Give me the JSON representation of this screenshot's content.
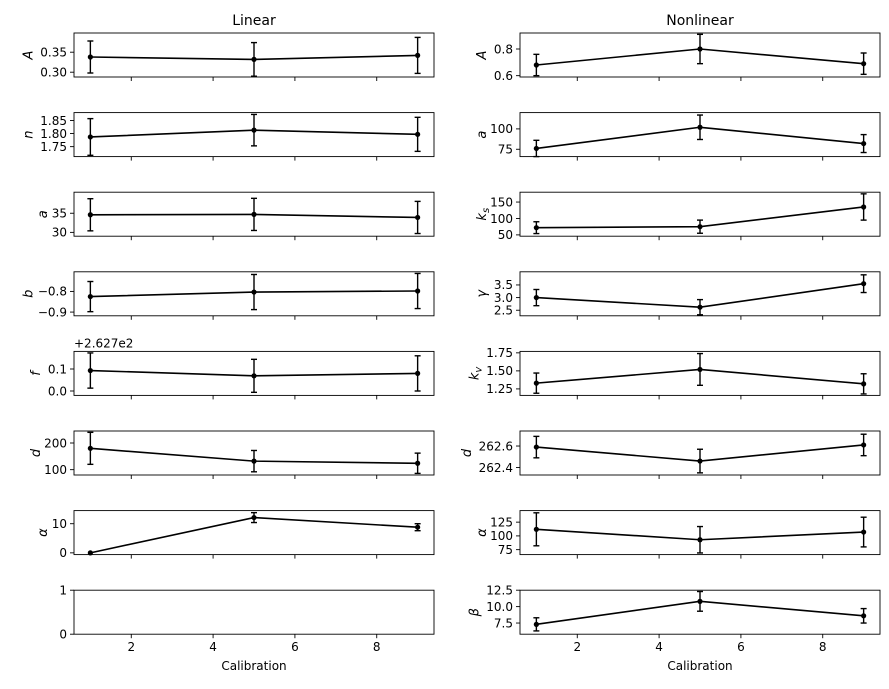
{
  "chart_data": [
    {
      "type": "line",
      "column": "Linear",
      "title": "Linear",
      "ylabel": "A",
      "ylabel_style": "italic",
      "x": [
        1,
        5,
        9
      ],
      "values": [
        0.338,
        0.332,
        0.342
      ],
      "err": [
        0.04,
        0.042,
        0.045
      ],
      "ylim": [
        0.288,
        0.398
      ],
      "yticks": [
        0.3,
        0.35
      ],
      "ytick_labels": [
        "0.30",
        "0.35"
      ],
      "offset_label": "",
      "xlabel": ""
    },
    {
      "type": "line",
      "column": "Nonlinear",
      "title": "Nonlinear",
      "ylabel": "A",
      "ylabel_style": "italic",
      "x": [
        1,
        5,
        9
      ],
      "values": [
        0.68,
        0.8,
        0.69
      ],
      "err": [
        0.08,
        0.11,
        0.08
      ],
      "ylim": [
        0.59,
        0.92
      ],
      "yticks": [
        0.6,
        0.8
      ],
      "ytick_labels": [
        "0.6",
        "0.8"
      ],
      "offset_label": "",
      "xlabel": ""
    },
    {
      "type": "line",
      "column": "Linear",
      "title": "",
      "ylabel": "n",
      "ylabel_style": "italic",
      "x": [
        1,
        5,
        9
      ],
      "values": [
        1.787,
        1.813,
        1.797
      ],
      "err": [
        0.07,
        0.06,
        0.065
      ],
      "ylim": [
        1.712,
        1.88
      ],
      "yticks": [
        1.75,
        1.8,
        1.85
      ],
      "ytick_labels": [
        "1.75",
        "1.80",
        "1.85"
      ],
      "offset_label": "",
      "xlabel": ""
    },
    {
      "type": "line",
      "column": "Nonlinear",
      "title": "",
      "ylabel": "a",
      "ylabel_style": "italic",
      "x": [
        1,
        5,
        9
      ],
      "values": [
        76,
        102,
        82
      ],
      "err": [
        10,
        15,
        11
      ],
      "ylim": [
        66,
        120
      ],
      "yticks": [
        75,
        100
      ],
      "ytick_labels": [
        "75",
        "100"
      ],
      "offset_label": "",
      "xlabel": ""
    },
    {
      "type": "line",
      "column": "Linear",
      "title": "",
      "ylabel": "a",
      "ylabel_style": "italic",
      "x": [
        1,
        5,
        9
      ],
      "values": [
        34.6,
        34.7,
        33.9
      ],
      "err": [
        4.2,
        4.2,
        4.2
      ],
      "ylim": [
        29.0,
        40.5
      ],
      "yticks": [
        30,
        35
      ],
      "ytick_labels": [
        "30",
        "35"
      ],
      "offset_label": "",
      "xlabel": ""
    },
    {
      "type": "line",
      "column": "Nonlinear",
      "title": "",
      "ylabel": "k_s",
      "ylabel_style": "italic",
      "x": [
        1,
        5,
        9
      ],
      "values": [
        72,
        75,
        135
      ],
      "err": [
        18,
        20,
        40
      ],
      "ylim": [
        46,
        180
      ],
      "yticks": [
        50,
        100,
        150
      ],
      "ytick_labels": [
        "50",
        "100",
        "150"
      ],
      "offset_label": "",
      "xlabel": ""
    },
    {
      "type": "line",
      "column": "Linear",
      "title": "",
      "ylabel": "b",
      "ylabel_style": "italic",
      "x": [
        1,
        5,
        9
      ],
      "values": [
        -0.825,
        -0.803,
        -0.798
      ],
      "err": [
        0.073,
        0.085,
        0.085
      ],
      "ylim": [
        -0.918,
        -0.705
      ],
      "yticks": [
        -0.9,
        -0.8
      ],
      "ytick_labels": [
        "−0.9",
        "−0.8"
      ],
      "offset_label": "",
      "xlabel": ""
    },
    {
      "type": "line",
      "column": "Nonlinear",
      "title": "",
      "ylabel": "γ",
      "ylabel_style": "italic",
      "x": [
        1,
        5,
        9
      ],
      "values": [
        3.0,
        2.62,
        3.55
      ],
      "err": [
        0.32,
        0.3,
        0.35
      ],
      "ylim": [
        2.28,
        4.02
      ],
      "yticks": [
        2.5,
        3.0,
        3.5
      ],
      "ytick_labels": [
        "2.5",
        "3.0",
        "3.5"
      ],
      "offset_label": "",
      "xlabel": ""
    },
    {
      "type": "line",
      "column": "Linear",
      "title": "",
      "ylabel": "f",
      "ylabel_style": "italic",
      "x": [
        1,
        5,
        9
      ],
      "values": [
        0.093,
        0.069,
        0.08
      ],
      "err": [
        0.08,
        0.075,
        0.08
      ],
      "ylim": [
        -0.02,
        0.18
      ],
      "yticks": [
        0.0,
        0.1
      ],
      "ytick_labels": [
        "0.0",
        "0.1"
      ],
      "offset_label": "+2.627e2",
      "xlabel": ""
    },
    {
      "type": "line",
      "column": "Nonlinear",
      "title": "",
      "ylabel": "k_v",
      "ylabel_style": "italic",
      "x": [
        1,
        5,
        9
      ],
      "values": [
        1.33,
        1.52,
        1.32
      ],
      "err": [
        0.14,
        0.22,
        0.14
      ],
      "ylim": [
        1.16,
        1.77
      ],
      "yticks": [
        1.25,
        1.5,
        1.75
      ],
      "ytick_labels": [
        "1.25",
        "1.50",
        "1.75"
      ],
      "offset_label": "",
      "xlabel": ""
    },
    {
      "type": "line",
      "column": "Linear",
      "title": "",
      "ylabel": "d",
      "ylabel_style": "italic",
      "x": [
        1,
        5,
        9
      ],
      "values": [
        180,
        132,
        124
      ],
      "err": [
        60,
        40,
        38
      ],
      "ylim": [
        80,
        245
      ],
      "yticks": [
        100,
        200
      ],
      "ytick_labels": [
        "100",
        "200"
      ],
      "offset_label": "",
      "xlabel": ""
    },
    {
      "type": "line",
      "column": "Nonlinear",
      "title": "",
      "ylabel": "d",
      "ylabel_style": "italic",
      "x": [
        1,
        5,
        9
      ],
      "values": [
        262.59,
        262.46,
        262.61
      ],
      "err": [
        0.1,
        0.11,
        0.1
      ],
      "ylim": [
        262.33,
        262.74
      ],
      "yticks": [
        262.4,
        262.6
      ],
      "ytick_labels": [
        "262.4",
        "262.6"
      ],
      "offset_label": "",
      "xlabel": ""
    },
    {
      "type": "line",
      "column": "Linear",
      "title": "",
      "ylabel": "α",
      "ylabel_style": "italic",
      "x": [
        1,
        5,
        9
      ],
      "values": [
        0.0,
        12.1,
        8.8
      ],
      "err": [
        0.0,
        1.7,
        1.2
      ],
      "ylim": [
        -0.6,
        14.5
      ],
      "yticks": [
        0,
        10
      ],
      "ytick_labels": [
        "0",
        "10"
      ],
      "offset_label": "",
      "xlabel": ""
    },
    {
      "type": "line",
      "column": "Nonlinear",
      "title": "",
      "ylabel": "α",
      "ylabel_style": "italic",
      "x": [
        1,
        5,
        9
      ],
      "values": [
        112,
        93,
        107
      ],
      "err": [
        30,
        24,
        27
      ],
      "ylim": [
        66,
        146
      ],
      "yticks": [
        75,
        100,
        125
      ],
      "ytick_labels": [
        "75",
        "100",
        "125"
      ],
      "offset_label": "",
      "xlabel": ""
    },
    {
      "type": "line",
      "column": "Linear",
      "title": "",
      "ylabel": "",
      "ylabel_style": "normal",
      "x": [],
      "values": [],
      "err": [],
      "ylim": [
        0,
        1
      ],
      "yticks": [
        0,
        1
      ],
      "ytick_labels": [
        "0",
        "1"
      ],
      "offset_label": "",
      "xlabel": "Calibration",
      "xticks": [
        2,
        4,
        6,
        8
      ],
      "xtick_labels": [
        "2",
        "4",
        "6",
        "8"
      ]
    },
    {
      "type": "line",
      "column": "Nonlinear",
      "title": "",
      "ylabel": "β",
      "ylabel_style": "italic",
      "x": [
        1,
        5,
        9
      ],
      "values": [
        7.3,
        10.8,
        8.6
      ],
      "err": [
        1.0,
        1.5,
        1.1
      ],
      "ylim": [
        5.8,
        12.5
      ],
      "yticks": [
        7.5,
        10.0,
        12.5
      ],
      "ytick_labels": [
        "7.5",
        "10.0",
        "12.5"
      ],
      "offset_label": "",
      "xlabel": "Calibration",
      "xticks": [
        2,
        4,
        6,
        8
      ],
      "xtick_labels": [
        "2",
        "4",
        "6",
        "8"
      ]
    }
  ],
  "colors": {
    "line": "#000000",
    "axes": "#000000",
    "background": "#ffffff"
  }
}
